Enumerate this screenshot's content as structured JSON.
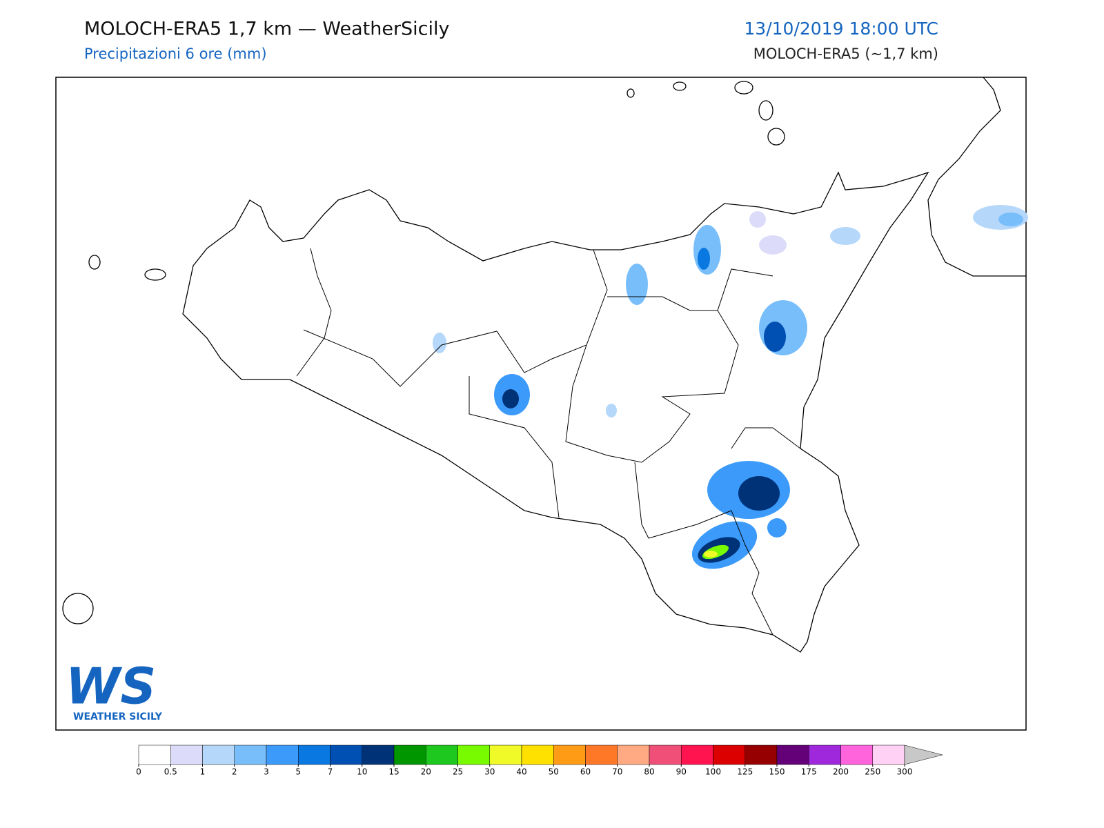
{
  "header": {
    "title": "MOLOCH-ERA5 1,7 km — WeatherSicily",
    "subtitle": "Precipitazioni 6 ore (mm)",
    "date": "13/10/2019 18:00 UTC",
    "model": "MOLOCH-ERA5 (~1,7 km)"
  },
  "logo": {
    "mark": "WS",
    "text": "WEATHER SICILY"
  },
  "colorbar": {
    "ticks": [
      0,
      0.5,
      1,
      2,
      3,
      5,
      7,
      10,
      15,
      20,
      25,
      30,
      40,
      50,
      60,
      70,
      80,
      90,
      100,
      125,
      150,
      175,
      200,
      250,
      300
    ],
    "colors": [
      "#ffffff",
      "#dcdcfa",
      "#b4d7fa",
      "#78befa",
      "#3c9bfa",
      "#0a78e1",
      "#0050b4",
      "#003278",
      "#009600",
      "#1ec81e",
      "#78fa00",
      "#f0fa28",
      "#ffe100",
      "#ff9b14",
      "#ff7828",
      "#ffaa82",
      "#f05078",
      "#ff1450",
      "#dc0000",
      "#960000",
      "#640078",
      "#a028dc",
      "#ff64dc",
      "#ffd2f5"
    ],
    "over_color": "#c8c8c8"
  }
}
